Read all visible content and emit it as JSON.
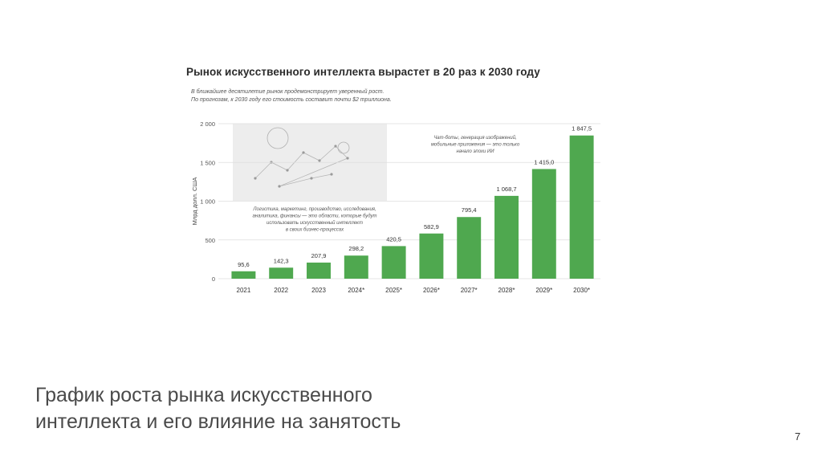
{
  "chart_data": {
    "type": "bar",
    "title": "Рынок искусственного интеллекта вырастет в 20 раз к 2030 году",
    "subtitle_lines": [
      "В ближайшее десятилетие рынок продемонстрирует уверенный рост.",
      "По прогнозам, к 2030 году его стоимость составит почти $2 триллиона."
    ],
    "ylabel": "Млрд долл. США",
    "xlabel": "",
    "ylim": [
      0,
      2000
    ],
    "yticks": [
      0,
      500,
      1000,
      1500,
      2000
    ],
    "ytick_labels": [
      "0",
      "500",
      "1 000",
      "1 500",
      "2 000"
    ],
    "categories": [
      "2021",
      "2022",
      "2023",
      "2024*",
      "2025*",
      "2026*",
      "2027*",
      "2028*",
      "2029*",
      "2030*"
    ],
    "values": [
      95.6,
      142.3,
      207.9,
      298.2,
      420.5,
      582.9,
      795.4,
      1068.7,
      1415.0,
      1847.5
    ],
    "value_labels": [
      "95,6",
      "142,3",
      "207,9",
      "298,2",
      "420,5",
      "582,9",
      "795,4",
      "1 068,7",
      "1 415,0",
      "1 847,5"
    ],
    "grid": true,
    "bar_color": "#4fa84f",
    "annotations": [
      {
        "lines": [
          "Логистика, маркетинг, производство, исследования,",
          "аналитика, финансы — это области, которые будут",
          "использовать искусственный интеллект",
          "в своих бизнес-процессах"
        ]
      },
      {
        "lines": [
          "Чат-боты, генерация изображений,",
          "мобильные приложения — это только",
          "начало эпохи ИИ"
        ]
      }
    ]
  },
  "footer": {
    "title_line1": "График роста рынка искусственного",
    "title_line2": "интеллекта и его влияние на занятость",
    "page_number": "7"
  }
}
